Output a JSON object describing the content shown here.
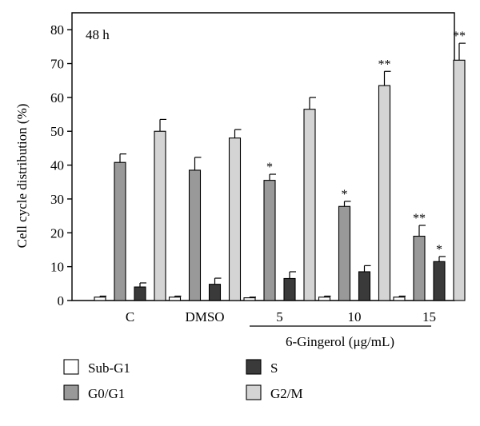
{
  "chart_data": {
    "type": "bar",
    "panel_label": "48 h",
    "ylabel": "Cell cycle distribution (%)",
    "ylim": [
      0,
      85
    ],
    "yticks": [
      0,
      10,
      20,
      30,
      40,
      50,
      60,
      70,
      80
    ],
    "categories": [
      "C",
      "DMSO",
      "5",
      "10",
      "15"
    ],
    "group_label": "6-Gingerol (μg/mL)",
    "series": [
      {
        "name": "Sub-G1",
        "color": "#ffffff",
        "values": [
          1.0,
          1.0,
          0.8,
          1.0,
          1.0
        ],
        "errors": [
          0.3,
          0.3,
          0.2,
          0.3,
          0.3
        ],
        "sig": [
          "",
          "",
          "",
          "",
          ""
        ]
      },
      {
        "name": "G0/G1",
        "color": "#999999",
        "values": [
          40.8,
          38.5,
          35.5,
          27.8,
          19.0
        ],
        "errors": [
          2.5,
          3.8,
          1.8,
          1.5,
          3.2
        ],
        "sig": [
          "",
          "",
          "*",
          "*",
          "**"
        ]
      },
      {
        "name": "S",
        "color": "#3a3a3a",
        "values": [
          4.0,
          4.8,
          6.5,
          8.5,
          11.5
        ],
        "errors": [
          1.2,
          1.8,
          2.0,
          1.8,
          1.5
        ],
        "sig": [
          "",
          "",
          "",
          "",
          "*"
        ]
      },
      {
        "name": "G2/M",
        "color": "#d4d4d4",
        "values": [
          50.0,
          48.0,
          56.5,
          63.5,
          71.0
        ],
        "errors": [
          3.5,
          2.5,
          3.5,
          4.2,
          5.0
        ],
        "sig": [
          "",
          "",
          "",
          "**",
          "**"
        ]
      }
    ],
    "legend_position": "bottom"
  }
}
